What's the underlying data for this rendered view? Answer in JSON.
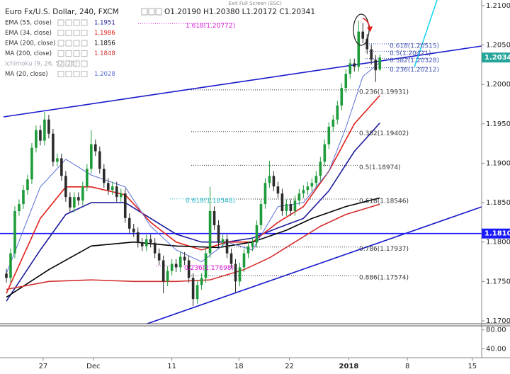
{
  "ui": {
    "exit_fullscreen": "Exit Full Screen (ESC)"
  },
  "chart_data": {
    "type": "candlestick",
    "title": "Euro Fx/U.S. Dollar, 240, FXCM",
    "ohlc_label": "O1.20190 H1.20380 L1.20172 C1.20341",
    "up_color": "#1e9b3a",
    "down_color": "#2b2b2b",
    "open": [
      1.176,
      1.17545,
      1.17857,
      1.18393,
      1.18482,
      1.18661,
      1.18795,
      1.19196,
      1.1942,
      1.19286,
      1.19554,
      1.19375,
      1.19018,
      1.19063,
      1.18839,
      1.18571,
      1.18438,
      1.18571,
      1.18527,
      1.18705,
      1.18929,
      1.19241,
      1.19152,
      1.18929,
      1.1875,
      1.18661,
      1.18705,
      1.18571,
      1.18616,
      1.18304,
      1.1817,
      1.18125,
      1.17991,
      1.17946,
      1.18036,
      1.17991,
      1.17857,
      1.17768,
      1.175,
      1.17634,
      1.17723,
      1.17679,
      1.17813,
      1.17768,
      1.17545,
      1.17277,
      1.17455,
      1.17545,
      1.17857,
      1.18393,
      1.18214,
      1.17991,
      1.18036,
      1.17857,
      1.17723,
      1.175,
      1.17679,
      1.17857,
      1.17946,
      1.17991,
      1.18214,
      1.18482,
      1.1875,
      1.18839,
      1.18705,
      1.18616,
      1.18393,
      1.18482,
      1.18393,
      1.18527,
      1.18616,
      1.18661,
      1.18705,
      1.1875,
      1.18839,
      1.19018,
      1.19241,
      1.19464,
      1.19554,
      1.19732,
      1.19955,
      1.20134,
      1.20268,
      1.20223,
      1.2067,
      1.2058,
      1.20446,
      1.20313,
      1.2019
    ],
    "high": [
      1.1766,
      1.17917,
      1.18453,
      1.18542,
      1.18721,
      1.18855,
      1.19256,
      1.1948,
      1.1948,
      1.1965,
      1.19614,
      1.19435,
      1.19123,
      1.19123,
      1.18899,
      1.18631,
      1.18631,
      1.18631,
      1.18765,
      1.18989,
      1.1942,
      1.19301,
      1.19212,
      1.18989,
      1.1881,
      1.18765,
      1.18765,
      1.18676,
      1.18676,
      1.18364,
      1.1823,
      1.18185,
      1.18051,
      1.18096,
      1.18096,
      1.18051,
      1.17917,
      1.17828,
      1.17694,
      1.17783,
      1.17783,
      1.17873,
      1.17873,
      1.17828,
      1.17605,
      1.17515,
      1.17605,
      1.17917,
      1.187,
      1.18453,
      1.18274,
      1.18096,
      1.18096,
      1.17917,
      1.17783,
      1.17739,
      1.17917,
      1.18006,
      1.18051,
      1.18274,
      1.18542,
      1.1881,
      1.1903,
      1.18899,
      1.18765,
      1.18676,
      1.18542,
      1.18542,
      1.18587,
      1.18676,
      1.18721,
      1.18765,
      1.1881,
      1.18899,
      1.19078,
      1.19301,
      1.19524,
      1.19614,
      1.19792,
      1.20015,
      1.20194,
      1.20328,
      1.20328,
      1.2081,
      1.2078,
      1.2064,
      1.20506,
      1.20373,
      1.2038
    ],
    "low": [
      1.17485,
      1.17485,
      1.17797,
      1.18333,
      1.18422,
      1.18601,
      1.18735,
      1.19136,
      1.19226,
      1.19226,
      1.19315,
      1.18958,
      1.18958,
      1.18779,
      1.18511,
      1.18378,
      1.18378,
      1.18467,
      1.18467,
      1.18645,
      1.18869,
      1.19092,
      1.18869,
      1.1869,
      1.18601,
      1.18601,
      1.18511,
      1.18511,
      1.18244,
      1.1811,
      1.18065,
      1.17931,
      1.17886,
      1.17886,
      1.17931,
      1.17797,
      1.17708,
      1.1735,
      1.1744,
      1.17574,
      1.17619,
      1.17619,
      1.17708,
      1.17485,
      1.1719,
      1.17217,
      1.17395,
      1.17485,
      1.17797,
      1.18154,
      1.17931,
      1.17931,
      1.17797,
      1.17663,
      1.1736,
      1.1744,
      1.17619,
      1.17797,
      1.17886,
      1.17931,
      1.18154,
      1.18422,
      1.1869,
      1.18645,
      1.18556,
      1.18333,
      1.18333,
      1.18333,
      1.18333,
      1.18467,
      1.18556,
      1.18601,
      1.18645,
      1.1869,
      1.18779,
      1.18958,
      1.19181,
      1.19404,
      1.19494,
      1.19672,
      1.19895,
      1.20074,
      1.20163,
      1.20163,
      1.2052,
      1.20386,
      1.20253,
      1.2003,
      1.20172
    ],
    "close": [
      1.17545,
      1.17857,
      1.18393,
      1.18482,
      1.18661,
      1.18795,
      1.19196,
      1.1942,
      1.19286,
      1.19554,
      1.19375,
      1.19018,
      1.19063,
      1.18839,
      1.18571,
      1.18438,
      1.18571,
      1.18527,
      1.18705,
      1.18929,
      1.19241,
      1.19152,
      1.18929,
      1.1875,
      1.18661,
      1.18705,
      1.18571,
      1.18616,
      1.18304,
      1.1817,
      1.18125,
      1.17991,
      1.17946,
      1.18036,
      1.17991,
      1.17857,
      1.17768,
      1.175,
      1.17634,
      1.17723,
      1.17679,
      1.17813,
      1.17768,
      1.17545,
      1.17277,
      1.17455,
      1.17545,
      1.17857,
      1.18393,
      1.18214,
      1.17991,
      1.18036,
      1.17857,
      1.17723,
      1.175,
      1.17679,
      1.17857,
      1.17946,
      1.17991,
      1.18214,
      1.18482,
      1.1875,
      1.18839,
      1.18705,
      1.18616,
      1.18393,
      1.18482,
      1.18393,
      1.18527,
      1.18616,
      1.18661,
      1.18705,
      1.1875,
      1.18839,
      1.19018,
      1.19241,
      1.19464,
      1.19554,
      1.19732,
      1.19955,
      1.20134,
      1.20268,
      1.20223,
      1.2067,
      1.2058,
      1.20446,
      1.20313,
      1.20179,
      1.20341
    ],
    "xlim": [
      -1.5,
      112
    ],
    "xticks": [
      {
        "value": 8.67,
        "label": "27"
      },
      {
        "value": 20.5,
        "label": "Dec"
      },
      {
        "value": 39,
        "label": "11"
      },
      {
        "value": 54.8,
        "label": "18"
      },
      {
        "value": 66.7,
        "label": "22"
      },
      {
        "value": 80.7,
        "label": "2018"
      },
      {
        "value": 94.5,
        "label": "8"
      },
      {
        "value": 109.8,
        "label": "15"
      }
    ],
    "ylim": [
      1.16964,
      1.21071
    ],
    "yticks": [
      {
        "value": 1.17,
        "label": "1.17000"
      },
      {
        "value": 1.175,
        "label": "1.17500"
      },
      {
        "value": 1.18,
        "label": "1.18000"
      },
      {
        "value": 1.185,
        "label": "1.18500"
      },
      {
        "value": 1.19,
        "label": "1.19000"
      },
      {
        "value": 1.195,
        "label": "1.19500"
      },
      {
        "value": 1.2,
        "label": "1.20000"
      },
      {
        "value": 1.205,
        "label": "1.20500"
      },
      {
        "value": 1.21,
        "label": "1.21000"
      }
    ],
    "indicators": [
      {
        "name": "EMA (55, close)",
        "color": "#1c1c9c",
        "legend_value": 1.1951,
        "x": [
          0,
          8,
          14,
          20,
          28,
          34,
          40,
          46,
          52,
          58,
          64,
          70,
          76,
          82,
          88
        ],
        "values": [
          1.1725,
          1.179,
          1.1835,
          1.185,
          1.185,
          1.183,
          1.181,
          1.18,
          1.18,
          1.1805,
          1.1818,
          1.183,
          1.1865,
          1.1915,
          1.1951
        ]
      },
      {
        "name": "EMA (34, close)",
        "color": "#e0201b",
        "legend_value": 1.1986,
        "x": [
          0,
          8,
          14,
          20,
          28,
          34,
          40,
          46,
          52,
          58,
          64,
          70,
          76,
          82,
          88
        ],
        "values": [
          1.1735,
          1.183,
          1.187,
          1.187,
          1.186,
          1.1825,
          1.18,
          1.179,
          1.18,
          1.18,
          1.1825,
          1.1845,
          1.189,
          1.195,
          1.1986
        ]
      },
      {
        "name": "EMA (200, close)",
        "color": "#000000",
        "legend_value": 1.1856,
        "x": [
          0,
          10,
          20,
          30,
          40,
          50,
          58,
          66,
          72,
          80,
          88
        ],
        "values": [
          1.173,
          1.1765,
          1.1795,
          1.18,
          1.1795,
          1.1793,
          1.18,
          1.1815,
          1.183,
          1.1845,
          1.1856
        ]
      },
      {
        "name": "MA (200, close)",
        "color": "#d32f2f",
        "legend_value": 1.1848,
        "x": [
          0,
          10,
          20,
          30,
          40,
          48,
          56,
          62,
          68,
          74,
          80,
          88
        ],
        "values": [
          1.174,
          1.175,
          1.1752,
          1.175,
          1.175,
          1.1752,
          1.1765,
          1.178,
          1.18,
          1.182,
          1.1835,
          1.1848
        ]
      },
      {
        "name": "Ichimoku (9, 26, 52, 26)",
        "hidden": true
      },
      {
        "name": "MA (20, close)",
        "color": "#5b6fd6",
        "legend_value": 1.2028,
        "x": [
          0,
          8,
          14,
          20,
          28,
          34,
          40,
          46,
          52,
          58,
          64,
          70,
          76,
          80,
          84,
          88
        ],
        "values": [
          1.176,
          1.187,
          1.1905,
          1.1885,
          1.187,
          1.182,
          1.179,
          1.1775,
          1.18,
          1.179,
          1.1845,
          1.185,
          1.189,
          1.1945,
          1.201,
          1.2028
        ]
      }
    ],
    "last_price": {
      "value": 1.20341,
      "color": "#26a69a"
    },
    "hline": {
      "value": 1.18108,
      "color": "#1a1aff"
    },
    "fibonacci": [
      {
        "color": "#d81bd8",
        "levels": [
          {
            "value": 1.20772,
            "label": "1.618(1.20772)"
          }
        ]
      },
      {
        "color": "#3f51b5",
        "levels": [
          {
            "value": 1.20515,
            "label": "0.618(1.20515)"
          },
          {
            "value": 1.20421,
            "label": "0.5(1.20421)"
          },
          {
            "value": 1.20328,
            "label": "0.382(1.20328)"
          },
          {
            "value": 1.20212,
            "label": "0.236(1.20212)"
          }
        ]
      },
      {
        "color": "#333333",
        "levels": [
          {
            "value": 1.19931,
            "label": "0.236(1.19931)"
          },
          {
            "value": 1.19402,
            "label": "0.382(1.19402)"
          },
          {
            "value": 1.18974,
            "label": "0.5(1.18974)"
          },
          {
            "value": 1.18546,
            "label": "0.618(1.18546)"
          },
          {
            "value": 1.17937,
            "label": "0.786(1.17937)"
          },
          {
            "value": 1.17574,
            "label": "0.886(1.17574)"
          }
        ]
      },
      {
        "color": "#26b5c6",
        "levels": [
          {
            "value": 1.18548,
            "label": "0.618(1.18548)"
          }
        ]
      },
      {
        "color": "#d81bd8",
        "levels": [
          {
            "value": 1.17698,
            "label": "0.236(1.17698)"
          }
        ]
      }
    ],
    "indicator_pane": {
      "ylim": [
        21.43,
        88.57
      ],
      "yticks": [
        {
          "value": 80,
          "label": "80.00"
        },
        {
          "value": 40,
          "label": "40.00"
        }
      ]
    }
  }
}
